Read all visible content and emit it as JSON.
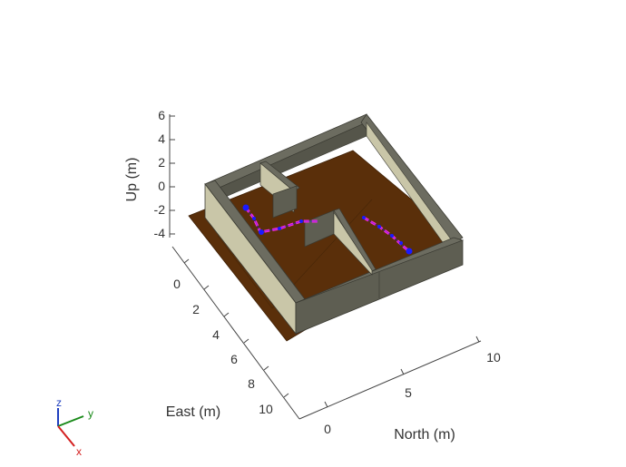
{
  "axes": {
    "up": {
      "label": "Up (m)",
      "ticks": [
        "6",
        "4",
        "2",
        "0",
        "-2",
        "-4"
      ]
    },
    "east": {
      "label": "East (m)",
      "ticks": [
        "0",
        "2",
        "4",
        "6",
        "8",
        "10"
      ]
    },
    "north": {
      "label": "North (m)",
      "ticks": [
        "0",
        "5",
        "10"
      ]
    }
  },
  "orientation_triad": {
    "z": "z",
    "y": "y",
    "x": "x"
  },
  "colors": {
    "floor": "#5a2f0a",
    "wall_top": "#6c6c60",
    "wall_face_light": "#c9c6a8",
    "wall_face_dark": "#5e5e52",
    "path": "#ff2bd6",
    "waypoint": "#1a1aff",
    "triad_z": "#1f3fbf",
    "triad_y": "#1a8a1a",
    "triad_x": "#d42020"
  }
}
